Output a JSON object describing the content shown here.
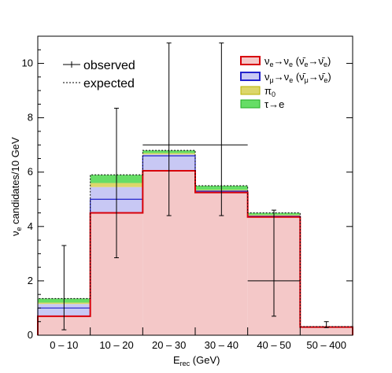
{
  "chart_data": {
    "type": "bar",
    "categories": [
      "0 – 10",
      "10 – 20",
      "20 – 30",
      "30 – 40",
      "40 – 50",
      "50 – 400"
    ],
    "xlabel": "E",
    "xlabel_sub": "rec",
    "xlabel_unit": "(GeV)",
    "ylabel": "ν",
    "ylabel_sub": "e",
    "ylabel_rest": "candidates/10 GeV",
    "ylim": [
      0,
      11
    ],
    "yticks": [
      0,
      2,
      4,
      6,
      8,
      10
    ],
    "stacked_layers": [
      {
        "name": "νe→νe (ν̄e→ν̄e)",
        "color": "#f4c8c8",
        "edge": "#d8000a",
        "values": [
          0.7,
          4.5,
          6.05,
          5.25,
          4.35,
          0.3
        ]
      },
      {
        "name": "νμ→νe (ν̄μ→ν̄e)",
        "color": "#c8c8f4",
        "edge": "#2222cc",
        "values": [
          0.45,
          0.95,
          0.6,
          0.05,
          0.05,
          0.0
        ]
      },
      {
        "name": "π0",
        "color": "#dcd66a",
        "edge": "#b8b200",
        "values": [
          0.05,
          0.15,
          0.05,
          0.05,
          0.03,
          0.0
        ]
      },
      {
        "name": "τ→e",
        "color": "#66dd66",
        "edge": "#22aa22",
        "values": [
          0.15,
          0.3,
          0.1,
          0.15,
          0.07,
          0.02
        ]
      }
    ],
    "mc_lines": [
      1.0,
      5.0,
      6.6,
      5.3,
      4.38,
      0.3
    ],
    "expected": [
      1.35,
      5.9,
      6.8,
      5.5,
      4.5,
      0.32
    ],
    "observed": [
      {
        "y": 1.8,
        "ylo": 0.2,
        "yhi": 3.3,
        "xerr": false
      },
      {
        "y": 5.0,
        "ylo": 2.85,
        "yhi": 8.35,
        "xerr": false
      },
      {
        "y": 7.0,
        "ylo": 4.4,
        "yhi": 10.75,
        "xerr": true,
        "span": [
          2,
          3
        ]
      },
      {
        "y": 7.0,
        "ylo": 4.4,
        "yhi": 10.75,
        "xerr": true,
        "span": [
          3,
          4
        ]
      },
      {
        "y": 2.0,
        "ylo": 0.7,
        "yhi": 4.6,
        "xerr": true,
        "span": [
          4,
          5
        ]
      },
      {
        "y": 0.38,
        "ylo": 0.28,
        "yhi": 0.5,
        "xerr": false
      }
    ],
    "legend_left": [
      {
        "label": "observed",
        "style": "errorbar"
      },
      {
        "label": "expected",
        "style": "dashed"
      }
    ],
    "grid": false
  }
}
